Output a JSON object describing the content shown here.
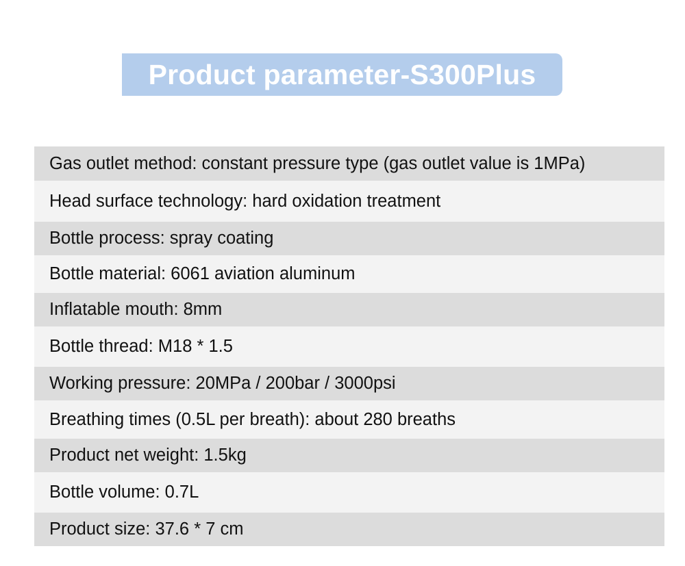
{
  "title": "Product parameter-S300Plus",
  "parameters": [
    "Gas outlet method: constant pressure type (gas outlet value is 1MPa)",
    "Head surface technology: hard oxidation treatment",
    "Bottle process: spray coating",
    "Bottle material: 6061 aviation aluminum",
    "Inflatable mouth: 8mm",
    "Bottle thread: M18 * 1.5",
    "Working pressure: 20MPa / 200bar / 3000psi",
    "Breathing times (0.5L per breath): about 280 breaths",
    "Product net weight: 1.5kg",
    "Bottle volume: 0.7L",
    "Product size: 37.6 * 7 cm"
  ],
  "colors": {
    "banner": "#b4cdec",
    "row_dark": "#dcdcdc",
    "row_light": "#f3f3f3",
    "text": "#111111"
  }
}
